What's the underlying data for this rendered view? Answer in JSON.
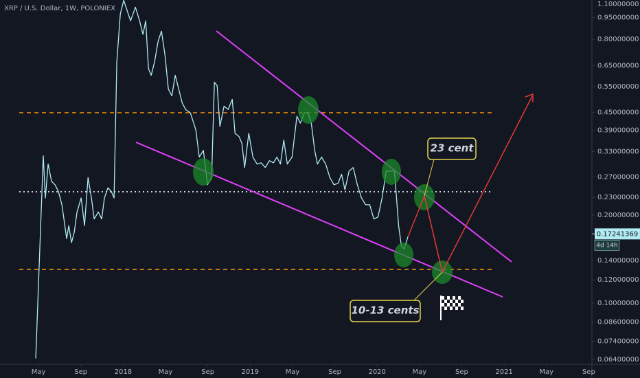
{
  "chart_data": {
    "type": "line",
    "title": "XRP / U.S. Dollar, 1W, POLONIEX",
    "log_scale": true,
    "grid": false,
    "color": "#b2ebf2",
    "xlim": [
      0.36,
      56.3
    ],
    "ylim": [
      0.0617,
      1.09
    ],
    "xticks": [
      {
        "value": 4,
        "label": "May"
      },
      {
        "value": 8,
        "label": "Sep"
      },
      {
        "value": 12,
        "label": "2018"
      },
      {
        "value": 16,
        "label": "May"
      },
      {
        "value": 20,
        "label": "Sep"
      },
      {
        "value": 24,
        "label": "2019"
      },
      {
        "value": 28,
        "label": "May"
      },
      {
        "value": 32,
        "label": "Sep"
      },
      {
        "value": 36,
        "label": "2020"
      },
      {
        "value": 40,
        "label": "May"
      },
      {
        "value": 44,
        "label": "Sep"
      },
      {
        "value": 48,
        "label": "2021"
      },
      {
        "value": 52,
        "label": "May"
      },
      {
        "value": 56,
        "label": "Sep"
      }
    ],
    "yticks": [
      {
        "value": 1.1,
        "label": "1.10000000"
      },
      {
        "value": 0.95,
        "label": "0.95000000"
      },
      {
        "value": 0.8,
        "label": "0.80000000"
      },
      {
        "value": 0.65,
        "label": "0.65000000"
      },
      {
        "value": 0.55,
        "label": "0.55000000"
      },
      {
        "value": 0.45,
        "label": "0.45000000"
      },
      {
        "value": 0.39,
        "label": "0.39000000"
      },
      {
        "value": 0.33,
        "label": "0.33000000"
      },
      {
        "value": 0.27,
        "label": "0.27000000"
      },
      {
        "value": 0.23,
        "label": "0.23000000"
      },
      {
        "value": 0.2,
        "label": "0.20000000"
      },
      {
        "value": 0.14,
        "label": "0.14000000"
      },
      {
        "value": 0.12,
        "label": "0.12000000"
      },
      {
        "value": 0.1,
        "label": "0.10000000"
      },
      {
        "value": 0.086,
        "label": "0.08600000"
      },
      {
        "value": 0.074,
        "label": "0.07400000"
      },
      {
        "value": 0.064,
        "label": "0.06400000"
      }
    ],
    "last_price": {
      "value": 0.17241369,
      "label": "0.17241369"
    },
    "countdown": "4d 14h",
    "annotations": [
      "23 cent",
      "10-13 cents"
    ],
    "x": [
      3.74,
      4.06,
      4.45,
      4.65,
      4.91,
      5.23,
      5.56,
      5.88,
      6.21,
      6.4,
      6.66,
      6.86,
      7.12,
      7.38,
      7.64,
      8.03,
      8.35,
      8.68,
      9.0,
      9.26,
      9.65,
      9.97,
      10.23,
      10.56,
      10.88,
      11.14,
      11.4,
      11.73,
      12.05,
      12.7,
      13.16,
      13.55,
      13.87,
      14.13,
      14.39,
      14.65,
      14.97,
      15.3,
      15.62,
      15.95,
      16.27,
      16.6,
      16.92,
      17.25,
      17.57,
      17.9,
      18.35,
      18.87,
      19.19,
      19.58,
      19.97,
      20.36,
      20.62,
      20.88,
      21.14,
      21.53,
      21.92,
      22.31,
      22.57,
      22.96,
      23.22,
      23.48,
      23.87,
      24.26,
      24.65,
      25.04,
      25.43,
      25.82,
      26.21,
      26.53,
      26.86,
      27.18,
      27.51,
      27.96,
      28.42,
      28.74,
      29.13,
      29.45,
      29.78,
      30.1,
      30.36,
      30.75,
      31.14,
      31.53,
      31.92,
      32.31,
      32.64,
      32.96,
      33.35,
      33.74,
      34.13,
      34.52,
      34.91,
      35.3,
      35.69,
      36.08,
      36.47,
      36.86,
      37.25,
      37.64,
      38.03,
      38.29,
      38.55,
      38.94
    ],
    "values": [
      0.0646,
      0.1335,
      0.319,
      0.229,
      0.299,
      0.261,
      0.254,
      0.241,
      0.217,
      0.194,
      0.166,
      0.184,
      0.161,
      0.175,
      0.205,
      0.229,
      0.184,
      0.269,
      0.229,
      0.194,
      0.205,
      0.194,
      0.229,
      0.248,
      0.241,
      0.229,
      0.67,
      0.976,
      1.087,
      0.925,
      1.03,
      0.925,
      0.831,
      0.925,
      0.635,
      0.602,
      0.67,
      0.787,
      0.853,
      0.707,
      0.54,
      0.512,
      0.602,
      0.54,
      0.485,
      0.46,
      0.448,
      0.391,
      0.316,
      0.333,
      0.254,
      0.269,
      0.57,
      0.555,
      0.402,
      0.472,
      0.46,
      0.498,
      0.381,
      0.371,
      0.352,
      0.291,
      0.381,
      0.316,
      0.299,
      0.302,
      0.291,
      0.307,
      0.302,
      0.316,
      0.299,
      0.361,
      0.299,
      0.316,
      0.436,
      0.413,
      0.448,
      0.448,
      0.413,
      0.333,
      0.299,
      0.316,
      0.299,
      0.269,
      0.254,
      0.257,
      0.276,
      0.244,
      0.283,
      0.291,
      0.254,
      0.229,
      0.217,
      0.217,
      0.194,
      0.197,
      0.229,
      0.283,
      0.283,
      0.283,
      0.184,
      0.157,
      0.153,
      0.17
    ]
  }
}
